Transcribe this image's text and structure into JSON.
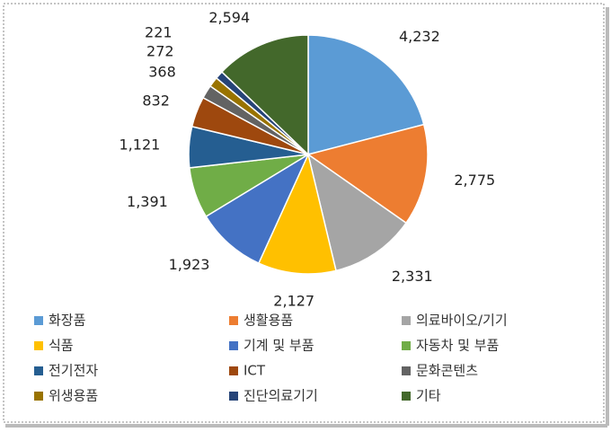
{
  "chart_data": {
    "type": "pie",
    "categories": [
      "화장품",
      "생활용품",
      "의료바이오/기기",
      "식품",
      "기계 및 부품",
      "자동차 및 부품",
      "전기전자",
      "ICT",
      "문화콘텐츠",
      "위생용품",
      "진단의료기기",
      "기타"
    ],
    "values": [
      4232,
      2775,
      2331,
      2127,
      1923,
      1391,
      1121,
      832,
      368,
      272,
      221,
      2594
    ],
    "value_labels": [
      "4,232",
      "2,775",
      "2,331",
      "2,127",
      "1,923",
      "1,391",
      "1,121",
      "832",
      "368",
      "272",
      "221",
      "2,594"
    ],
    "colors": [
      "#5b9bd5",
      "#ed7d31",
      "#a5a5a5",
      "#ffc000",
      "#4472c4",
      "#70ad47",
      "#255e91",
      "#9e480e",
      "#636363",
      "#997300",
      "#264478",
      "#43682b"
    ],
    "legend": "bottom"
  }
}
